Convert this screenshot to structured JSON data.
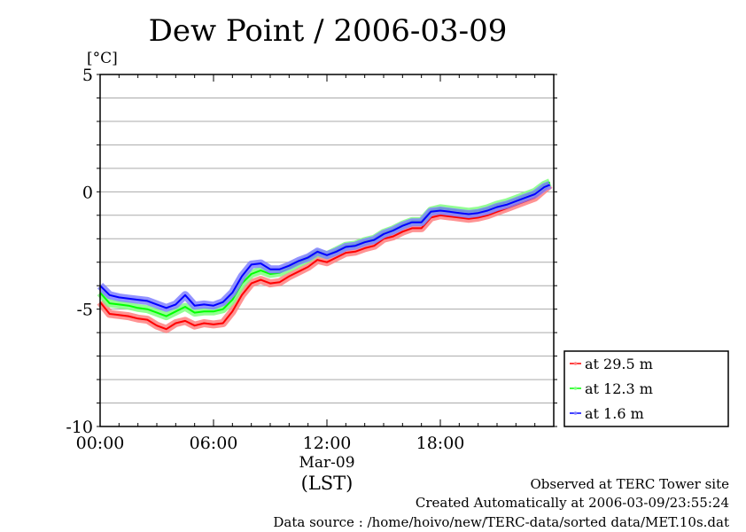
{
  "chart_data": {
    "type": "line",
    "title": "Dew Point / 2006-03-09",
    "ylabel": "[°C]",
    "xlabel": "(LST)",
    "x_date_label": "Mar-09",
    "ylim": [
      -10,
      5
    ],
    "xlim": [
      0,
      24
    ],
    "y_ticks": [
      {
        "v": 5,
        "label": "5"
      },
      {
        "v": 0,
        "label": "0"
      },
      {
        "v": -5,
        "label": "-5"
      },
      {
        "v": -10,
        "label": "-10"
      }
    ],
    "x_ticks": [
      {
        "v": 0,
        "label": "00:00"
      },
      {
        "v": 6,
        "label": "06:00"
      },
      {
        "v": 12,
        "label": "12:00"
      },
      {
        "v": 18,
        "label": "18:00"
      }
    ],
    "grid": true,
    "legend_position": "right-bottom-outside",
    "x": [
      0,
      0.5,
      1,
      1.5,
      2,
      2.5,
      3,
      3.5,
      4,
      4.5,
      5,
      5.5,
      6,
      6.5,
      7,
      7.5,
      8,
      8.5,
      9,
      9.5,
      10,
      10.5,
      11,
      11.5,
      12,
      12.5,
      13,
      13.5,
      14,
      14.5,
      15,
      15.5,
      16,
      16.5,
      17,
      17.5,
      18,
      18.5,
      19,
      19.5,
      20,
      20.5,
      21,
      21.5,
      22,
      22.5,
      23,
      23.5,
      23.8
    ],
    "series": [
      {
        "name": "at 29.5 m",
        "color": "#ff0000",
        "halo": "#ff8080",
        "values": [
          -4.7,
          -5.2,
          -5.25,
          -5.3,
          -5.4,
          -5.45,
          -5.7,
          -5.85,
          -5.6,
          -5.5,
          -5.7,
          -5.6,
          -5.65,
          -5.6,
          -5.1,
          -4.4,
          -3.9,
          -3.75,
          -3.9,
          -3.85,
          -3.6,
          -3.4,
          -3.2,
          -2.9,
          -3.0,
          -2.8,
          -2.6,
          -2.55,
          -2.4,
          -2.3,
          -2.0,
          -1.9,
          -1.7,
          -1.55,
          -1.55,
          -1.1,
          -1.0,
          -1.05,
          -1.1,
          -1.15,
          -1.1,
          -1.0,
          -0.85,
          -0.7,
          -0.55,
          -0.4,
          -0.25,
          0.1,
          0.3
        ]
      },
      {
        "name": "at 12.3 m",
        "color": "#00ff00",
        "halo": "#80ff80",
        "values": [
          -4.3,
          -4.75,
          -4.8,
          -4.85,
          -4.95,
          -5.0,
          -5.15,
          -5.3,
          -5.1,
          -4.9,
          -5.15,
          -5.1,
          -5.1,
          -5.0,
          -4.6,
          -3.9,
          -3.5,
          -3.35,
          -3.5,
          -3.45,
          -3.25,
          -3.05,
          -2.85,
          -2.6,
          -2.7,
          -2.5,
          -2.3,
          -2.25,
          -2.1,
          -2.0,
          -1.75,
          -1.6,
          -1.4,
          -1.25,
          -1.25,
          -0.8,
          -0.7,
          -0.75,
          -0.8,
          -0.85,
          -0.8,
          -0.7,
          -0.55,
          -0.45,
          -0.3,
          -0.15,
          0.0,
          0.3,
          0.4
        ]
      },
      {
        "name": "at 1.6 m",
        "color": "#0000ff",
        "halo": "#8080ff",
        "values": [
          -4.0,
          -4.4,
          -4.5,
          -4.55,
          -4.6,
          -4.65,
          -4.8,
          -4.95,
          -4.8,
          -4.4,
          -4.85,
          -4.8,
          -4.85,
          -4.7,
          -4.3,
          -3.6,
          -3.1,
          -3.05,
          -3.3,
          -3.3,
          -3.15,
          -2.95,
          -2.8,
          -2.55,
          -2.7,
          -2.55,
          -2.35,
          -2.3,
          -2.15,
          -2.05,
          -1.8,
          -1.65,
          -1.45,
          -1.3,
          -1.3,
          -0.85,
          -0.8,
          -0.85,
          -0.9,
          -0.95,
          -0.9,
          -0.8,
          -0.65,
          -0.55,
          -0.4,
          -0.25,
          -0.1,
          0.2,
          0.3
        ]
      }
    ]
  },
  "footer": {
    "line1": "Observed at TERC Tower site",
    "line2": "Created Automatically at 2006-03-09/23:55:24",
    "line3": "Data source : /home/hoivo/new/TERC-data/sorted  data/MET.10s.dat"
  }
}
